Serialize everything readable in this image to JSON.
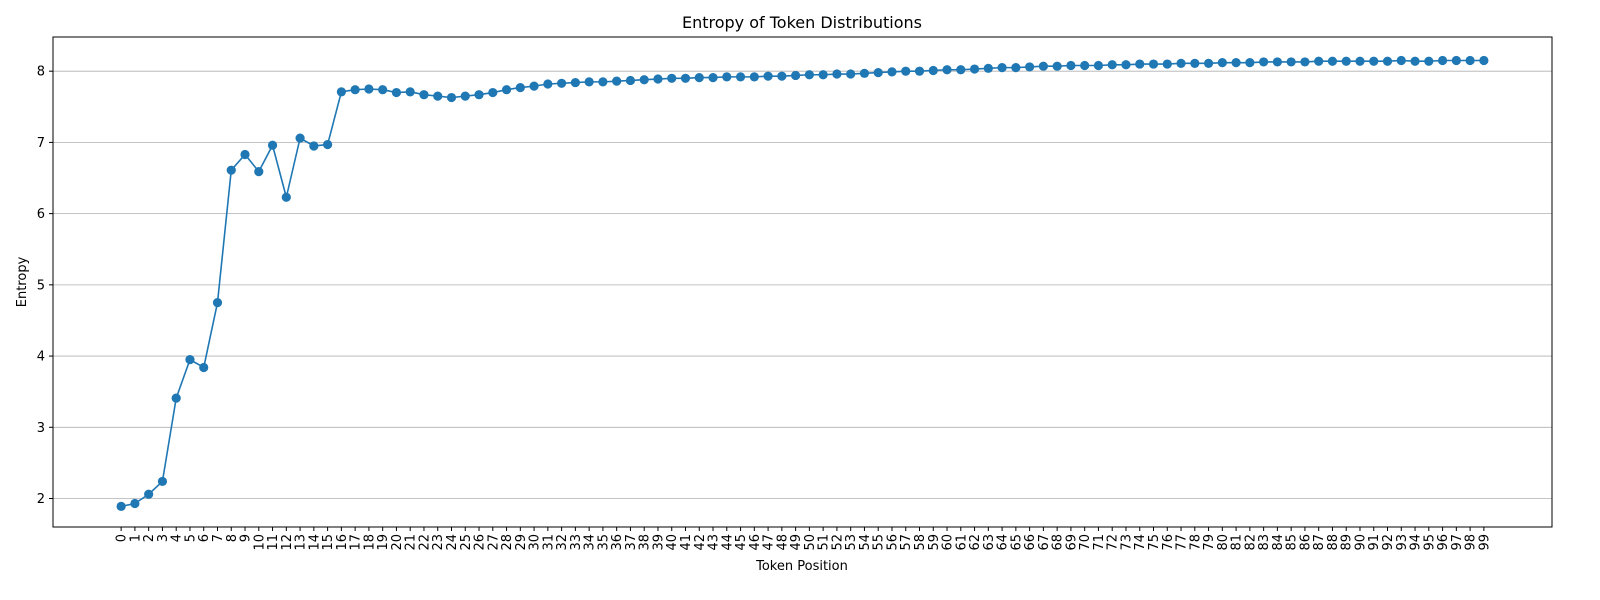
{
  "chart_data": {
    "type": "line",
    "title": "Entropy of Token Distributions",
    "xlabel": "Token Position",
    "ylabel": "Entropy",
    "x": [
      0,
      1,
      2,
      3,
      4,
      5,
      6,
      7,
      8,
      9,
      10,
      11,
      12,
      13,
      14,
      15,
      16,
      17,
      18,
      19,
      20,
      21,
      22,
      23,
      24,
      25,
      26,
      27,
      28,
      29,
      30,
      31,
      32,
      33,
      34,
      35,
      36,
      37,
      38,
      39,
      40,
      41,
      42,
      43,
      44,
      45,
      46,
      47,
      48,
      49,
      50,
      51,
      52,
      53,
      54,
      55,
      56,
      57,
      58,
      59,
      60,
      61,
      62,
      63,
      64,
      65,
      66,
      67,
      68,
      69,
      70,
      71,
      72,
      73,
      74,
      75,
      76,
      77,
      78,
      79,
      80,
      81,
      82,
      83,
      84,
      85,
      86,
      87,
      88,
      89,
      90,
      91,
      92,
      93,
      94,
      95,
      96,
      97,
      98,
      99
    ],
    "series": [
      {
        "values": [
          1.89,
          1.93,
          2.06,
          2.24,
          3.41,
          3.95,
          3.84,
          4.75,
          6.61,
          6.83,
          6.59,
          6.96,
          6.23,
          7.06,
          6.95,
          6.97,
          7.71,
          7.74,
          7.75,
          7.74,
          7.7,
          7.71,
          7.67,
          7.65,
          7.63,
          7.65,
          7.67,
          7.7,
          7.74,
          7.77,
          7.79,
          7.82,
          7.83,
          7.84,
          7.85,
          7.85,
          7.86,
          7.87,
          7.88,
          7.89,
          7.9,
          7.9,
          7.91,
          7.91,
          7.92,
          7.92,
          7.92,
          7.93,
          7.93,
          7.94,
          7.95,
          7.95,
          7.96,
          7.96,
          7.97,
          7.98,
          7.99,
          8.0,
          8.0,
          8.01,
          8.02,
          8.02,
          8.03,
          8.04,
          8.05,
          8.05,
          8.06,
          8.07,
          8.07,
          8.08,
          8.08,
          8.08,
          8.09,
          8.09,
          8.1,
          8.1,
          8.1,
          8.11,
          8.11,
          8.11,
          8.12,
          8.12,
          8.12,
          8.13,
          8.13,
          8.13,
          8.13,
          8.14,
          8.14,
          8.14,
          8.14,
          8.14,
          8.14,
          8.15,
          8.14,
          8.14,
          8.15,
          8.15,
          8.15,
          8.15
        ]
      }
    ],
    "ylim": [
      1.6,
      8.48
    ],
    "yticks": [
      2,
      3,
      4,
      5,
      6,
      7,
      8
    ],
    "grid": "y",
    "color": "#1f77b4"
  }
}
